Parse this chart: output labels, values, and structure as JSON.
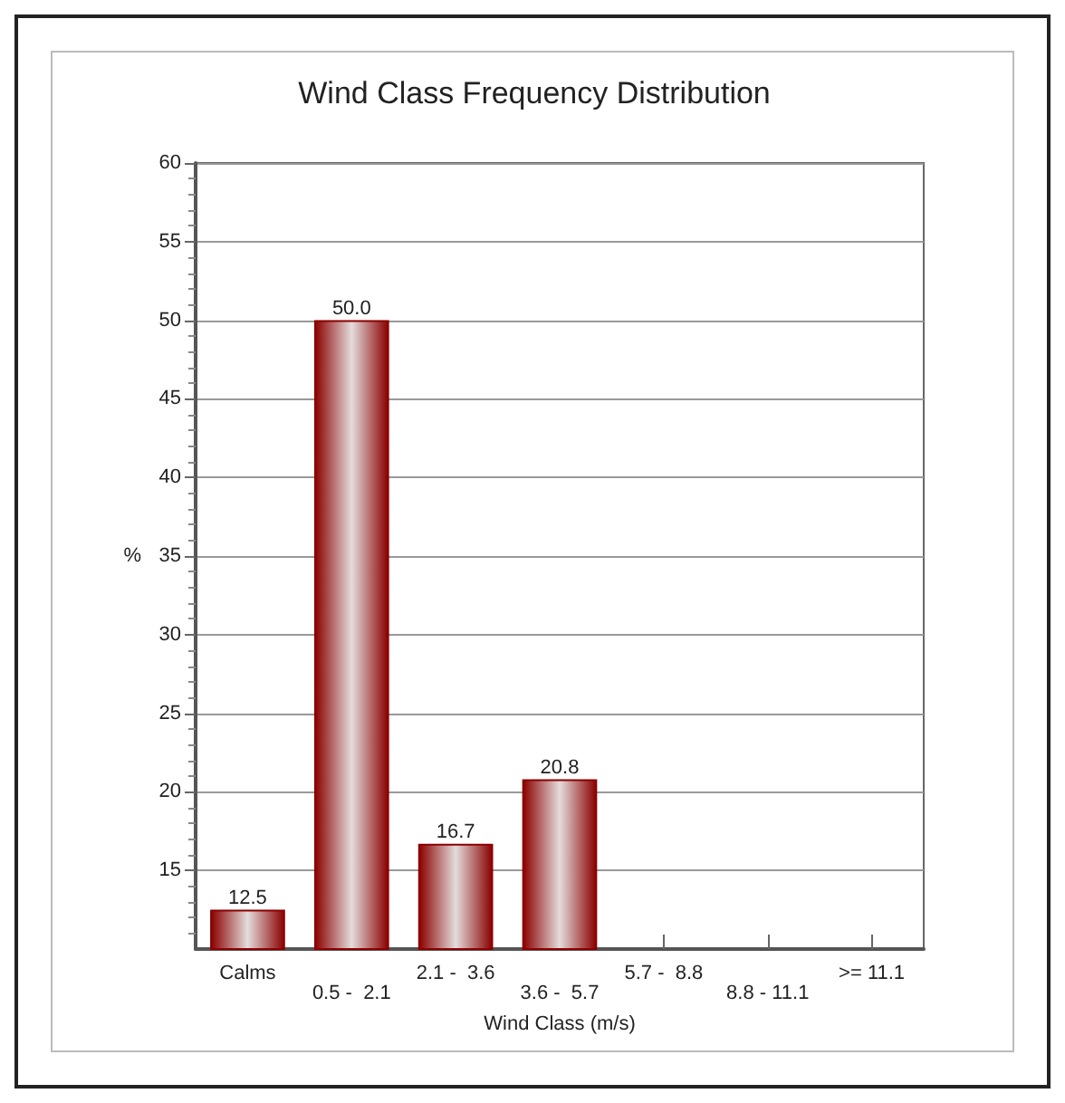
{
  "chart_data": {
    "type": "bar",
    "title": "Wind Class Frequency Distribution",
    "xlabel": "Wind Class (m/s)",
    "ylabel": "%",
    "categories": [
      "Calms",
      "0.5 -  2.1",
      "2.1 -  3.6",
      "3.6 -  5.7",
      "5.7 -  8.8",
      "8.8 - 11.1",
      ">= 11.1"
    ],
    "values": [
      12.5,
      50.0,
      16.7,
      20.8,
      null,
      null,
      null
    ],
    "value_labels": [
      "12.5",
      "50.0",
      "16.7",
      "20.8",
      null,
      null,
      null
    ],
    "color": "#8b0000",
    "ylim": [
      10,
      60
    ],
    "yticks": [
      15,
      20,
      25,
      30,
      35,
      40,
      45,
      50,
      55,
      60
    ],
    "grid": "y"
  }
}
